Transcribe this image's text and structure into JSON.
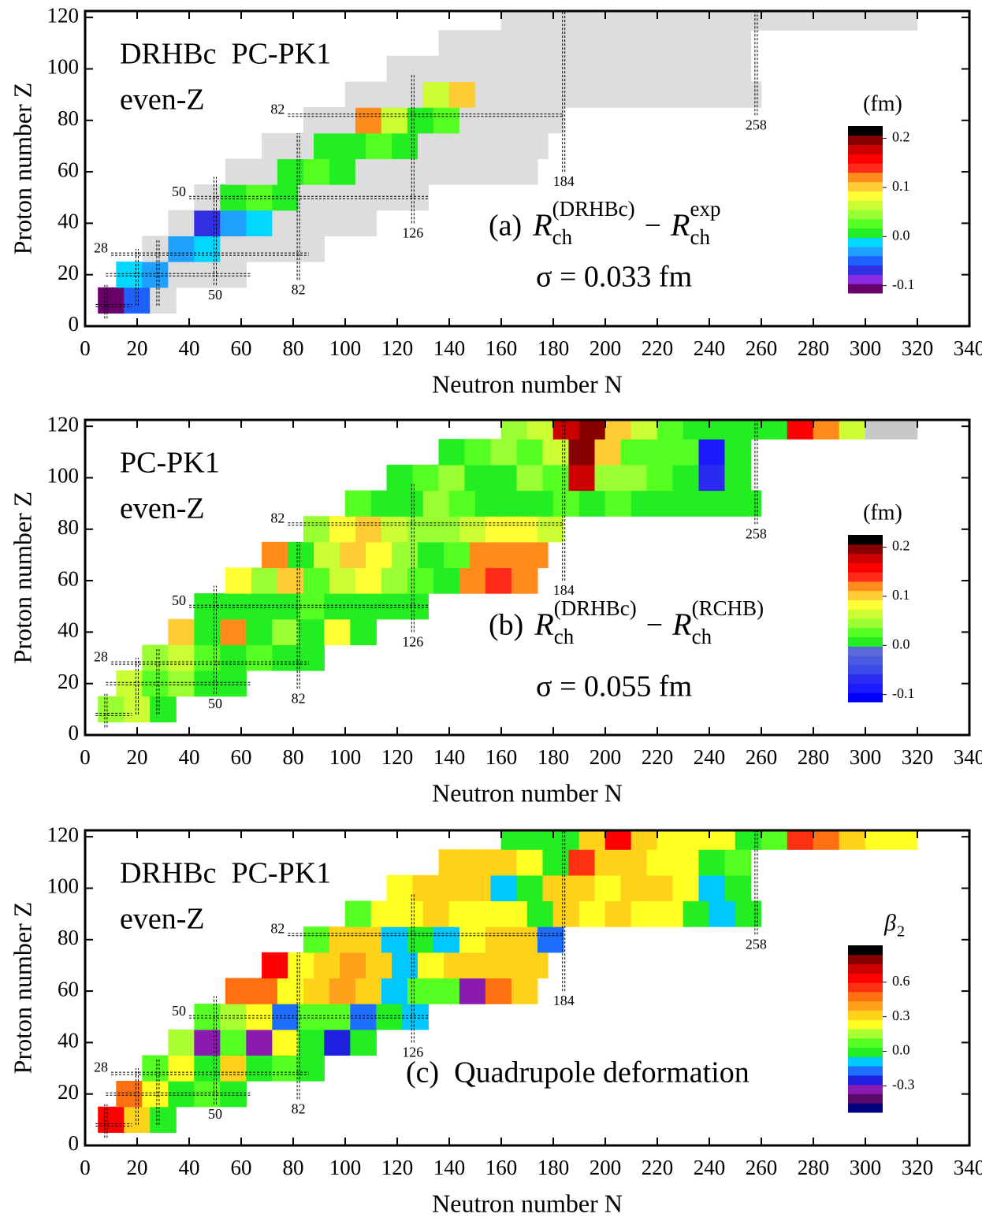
{
  "chart_data": [
    {
      "type": "heatmap",
      "title_lines": [
        "DRHBc  PC-PK1",
        "even-Z"
      ],
      "annotation": {
        "prefix": "(a)",
        "terms": [
          {
            "base": "R",
            "sub": "ch",
            "sup": "(DRHBc)"
          },
          {
            "base": "R",
            "sub": "ch",
            "sup": "exp"
          }
        ],
        "operator": "−"
      },
      "sigma": "σ = 0.033 fm",
      "x_label": "Neutron number N",
      "y_label": "Proton number Z",
      "xlim": [
        0,
        340
      ],
      "ylim": [
        0,
        122.5
      ],
      "xticks": [
        0,
        20,
        40,
        60,
        80,
        100,
        120,
        140,
        160,
        180,
        200,
        220,
        240,
        260,
        280,
        300,
        320,
        340
      ],
      "yticks": [
        0,
        20,
        40,
        60,
        80,
        100,
        120
      ],
      "missing_color": "#dddddd",
      "rows": [
        {
          "z": 10,
          "n0": 5,
          "values": [
            -0.1,
            -0.04,
            null
          ]
        },
        {
          "z": 20,
          "n0": 12,
          "values": [
            -0.02,
            -0.03,
            null,
            null,
            null
          ]
        },
        {
          "z": 30,
          "n0": 22,
          "values": [
            null,
            -0.03,
            -0.02,
            null,
            null,
            null,
            null
          ]
        },
        {
          "z": 40,
          "n0": 32,
          "values": [
            null,
            -0.06,
            -0.03,
            -0.02,
            null,
            null,
            null,
            null
          ]
        },
        {
          "z": 50,
          "n0": 42,
          "values": [
            null,
            0,
            0.02,
            0,
            null,
            null,
            null,
            null,
            null
          ]
        },
        {
          "z": 60,
          "n0": 54,
          "values": [
            null,
            null,
            0,
            0.02,
            0,
            null,
            null,
            null,
            null,
            null,
            null,
            null
          ]
        },
        {
          "z": 70,
          "n0": 68,
          "values": [
            null,
            null,
            0,
            0.01,
            0.02,
            0,
            null,
            null,
            null,
            null,
            null
          ]
        },
        {
          "z": 80,
          "n0": 84,
          "values": [
            null,
            null,
            0.12,
            0.06,
            0,
            0.03,
            null,
            null,
            null,
            null
          ]
        },
        {
          "z": 90,
          "n0": 100,
          "values": [
            null,
            null,
            null,
            0.06,
            0.1,
            null,
            null,
            null,
            null,
            null,
            null,
            null,
            null,
            null,
            null,
            null
          ]
        },
        {
          "z": 100,
          "n0": 116,
          "values": [
            null,
            null,
            null,
            null,
            null,
            null,
            null,
            null,
            null,
            null,
            null,
            null,
            null,
            null
          ]
        },
        {
          "z": 110,
          "n0": 136,
          "values": [
            null,
            null,
            null,
            null,
            null,
            null,
            null,
            null,
            null,
            null,
            null,
            null
          ]
        },
        {
          "z": 120,
          "n0": 160,
          "values": [
            null,
            null,
            null,
            null,
            null,
            null,
            null,
            null,
            null,
            null,
            null,
            null,
            null,
            null,
            null,
            null
          ]
        }
      ],
      "colorbar": {
        "title": "(fm)",
        "clim": [
          -0.115,
          0.225
        ],
        "ticks": [
          0.2,
          0.1,
          {
            "value": 0,
            "label": "0.0"
          },
          -0.1
        ],
        "colors": [
          "#6a006a",
          "#8a2be2",
          "#3030e0",
          "#1e60ff",
          "#1ea0ff",
          "#00d8ff",
          "#22ee22",
          "#55ff22",
          "#99ff33",
          "#ccff33",
          "#ffff33",
          "#ffcc33",
          "#ff8c1a",
          "#ff2a1a",
          "#ff0000",
          "#cc0000",
          "#880000",
          "#000000"
        ]
      }
    },
    {
      "type": "heatmap",
      "title_lines": [
        "PC-PK1",
        "even-Z"
      ],
      "annotation": {
        "prefix": "(b)",
        "terms": [
          {
            "base": "R",
            "sub": "ch",
            "sup": "(DRHBc)"
          },
          {
            "base": "R",
            "sub": "ch",
            "sup": "(RCHB)"
          }
        ],
        "operator": "−"
      },
      "sigma": "σ = 0.055 fm",
      "x_label": "Neutron number N",
      "y_label": "Proton number Z",
      "xlim": [
        0,
        340
      ],
      "ylim": [
        0,
        122.5
      ],
      "xticks": [
        0,
        20,
        40,
        60,
        80,
        100,
        120,
        140,
        160,
        180,
        200,
        220,
        240,
        260,
        280,
        300,
        320,
        340
      ],
      "yticks": [
        0,
        20,
        40,
        60,
        80,
        100,
        120
      ],
      "missing_color": "#c8c8c8",
      "rows": [
        {
          "z": 10,
          "n0": 5,
          "values": [
            0.04,
            0.06,
            0
          ]
        },
        {
          "z": 20,
          "n0": 12,
          "values": [
            0.06,
            0.03,
            0.05,
            0,
            0
          ]
        },
        {
          "z": 30,
          "n0": 22,
          "values": [
            0.04,
            0.06,
            0.02,
            0,
            0.03,
            0,
            0
          ]
        },
        {
          "z": 40,
          "n0": 32,
          "values": [
            0.1,
            0,
            0.12,
            0,
            0.04,
            0,
            0.08,
            0
          ]
        },
        {
          "z": 50,
          "n0": 42,
          "values": [
            0,
            0,
            0,
            0,
            0.02,
            0,
            0,
            0,
            0
          ]
        },
        {
          "z": 60,
          "n0": 54,
          "values": [
            0.08,
            0.04,
            0.1,
            0.02,
            0.06,
            0.09,
            0.04,
            0.02,
            0,
            0.12,
            0.14,
            0.12
          ]
        },
        {
          "z": 70,
          "n0": 68,
          "values": [
            0.12,
            0,
            0.06,
            0.1,
            0.09,
            0.04,
            0,
            0.02,
            0.12,
            0.13,
            0.12
          ]
        },
        {
          "z": 80,
          "n0": 84,
          "values": [
            0.04,
            0.08,
            0.1,
            0.06,
            0.04,
            0.04,
            0.06,
            0.09,
            0.08,
            0.06
          ]
        },
        {
          "z": 90,
          "n0": 100,
          "values": [
            0.02,
            0,
            0,
            0.04,
            0.02,
            0,
            0,
            0,
            0.03,
            0,
            0.02,
            0,
            0,
            0,
            0,
            0
          ]
        },
        {
          "z": 100,
          "n0": 116,
          "values": [
            0,
            0.02,
            0.04,
            0,
            0,
            0.04,
            0.02,
            0.18,
            0.04,
            0.04,
            0.02,
            0,
            -0.06,
            0
          ]
        },
        {
          "z": 110,
          "n0": 136,
          "values": [
            0,
            0.02,
            0.04,
            0.03,
            0.06,
            0.2,
            0.1,
            0.02,
            0.03,
            0.02,
            -0.08,
            0
          ]
        },
        {
          "z": 120,
          "n0": 160,
          "values": [
            0.04,
            0.06,
            0.18,
            0.2,
            0.1,
            0.06,
            0.02,
            0,
            0,
            0,
            0,
            0.16,
            0.12,
            0.06,
            null,
            null
          ]
        }
      ],
      "colorbar": {
        "title": "(fm)",
        "clim": [
          -0.115,
          0.225
        ],
        "ticks": [
          0.2,
          0.1,
          {
            "value": 0,
            "label": "0.0"
          },
          -0.1
        ],
        "colors": [
          "#0000ff",
          "#1a1aff",
          "#2a2af0",
          "#3a4ae8",
          "#4a5ae0",
          "#5a6ad8",
          "#22ee22",
          "#55ff22",
          "#99ff33",
          "#ccff33",
          "#ffff33",
          "#ffcc33",
          "#ff8c1a",
          "#ff2a1a",
          "#ff0000",
          "#cc0000",
          "#880000",
          "#000000"
        ]
      }
    },
    {
      "type": "heatmap",
      "title_lines": [
        "DRHBc  PC-PK1",
        "even-Z"
      ],
      "annotation": {
        "prefix": "(c)  Quadrupole deformation",
        "terms": [],
        "operator": ""
      },
      "x_label": "Neutron number N",
      "y_label": "Proton number Z",
      "xlim": [
        0,
        340
      ],
      "ylim": [
        0,
        122.5
      ],
      "xticks": [
        0,
        20,
        40,
        60,
        80,
        100,
        120,
        140,
        160,
        180,
        200,
        220,
        240,
        260,
        280,
        300,
        320,
        340
      ],
      "yticks": [
        0,
        20,
        40,
        60,
        80,
        100,
        120
      ],
      "missing_color": "#ffe89a",
      "rows": [
        {
          "z": 10,
          "n0": 5,
          "values": [
            0.6,
            0.3,
            0
          ]
        },
        {
          "z": 20,
          "n0": 12,
          "values": [
            0.45,
            0.2,
            0,
            0.1,
            0
          ]
        },
        {
          "z": 30,
          "n0": 22,
          "values": [
            0.1,
            0.2,
            0,
            0.3,
            0,
            0.05,
            0
          ]
        },
        {
          "z": 40,
          "n0": 32,
          "values": [
            0.15,
            -0.3,
            0.1,
            -0.3,
            0.2,
            0,
            -0.25,
            0
          ]
        },
        {
          "z": 50,
          "n0": 42,
          "values": [
            0.1,
            0.15,
            0.25,
            -0.2,
            0.1,
            0.05,
            -0.2,
            0,
            -0.1
          ]
        },
        {
          "z": 60,
          "n0": 54,
          "values": [
            0.5,
            0.45,
            0.2,
            0.35,
            0.4,
            0.3,
            -0.1,
            0.1,
            0.1,
            -0.3,
            0.5,
            0.3
          ]
        },
        {
          "z": 70,
          "n0": 68,
          "values": [
            0.6,
            0.2,
            0.35,
            0.4,
            0.3,
            -0.1,
            0.2,
            0.3,
            0.35,
            0.35,
            0.3
          ]
        },
        {
          "z": 80,
          "n0": 84,
          "values": [
            0.1,
            0.3,
            0.3,
            -0.1,
            0,
            -0.05,
            0.25,
            0.35,
            0.3,
            -0.2
          ]
        },
        {
          "z": 90,
          "n0": 100,
          "values": [
            0.1,
            0.2,
            0.25,
            0.3,
            0.25,
            0.2,
            0.25,
            0,
            0.3,
            0.25,
            0.35,
            0.25,
            0.2,
            0,
            -0.05,
            0
          ]
        },
        {
          "z": 100,
          "n0": 116,
          "values": [
            0.25,
            0.3,
            0.35,
            0.35,
            -0.1,
            0,
            0.3,
            0.3,
            0.25,
            0.35,
            0.3,
            0.2,
            -0.05,
            0
          ]
        },
        {
          "z": 110,
          "n0": 136,
          "values": [
            0.3,
            0.35,
            0.35,
            0.2,
            0,
            0.55,
            0.3,
            0.3,
            0.25,
            0.25,
            0,
            0.1
          ]
        },
        {
          "z": 120,
          "n0": 160,
          "values": [
            0,
            0,
            0,
            0.3,
            0.6,
            0.3,
            0.25,
            0.25,
            0.2,
            0,
            0.05,
            0.55,
            0.5,
            0.3,
            0.2,
            0.2
          ]
        }
      ],
      "colorbar": {
        "title": {
          "base": "β",
          "sub": "2"
        },
        "clim": [
          -0.53,
          0.92
        ],
        "ticks": [
          0.6,
          0.3,
          {
            "value": 0,
            "label": "0.0"
          },
          -0.3
        ],
        "colors": [
          "#000080",
          "#5a0a6a",
          "#8a1ab0",
          "#2020e0",
          "#1e6fff",
          "#00c8ff",
          "#22ee22",
          "#55ff22",
          "#aaff33",
          "#ffff22",
          "#ffd21a",
          "#ffa01a",
          "#ff7010",
          "#ff3010",
          "#ff0000",
          "#cc0000",
          "#880000",
          "#000000"
        ]
      }
    }
  ],
  "magic_numbers": {
    "neutron": [
      8,
      20,
      28,
      50,
      82,
      126,
      184,
      258
    ],
    "proton": [
      8,
      20,
      28,
      50,
      82
    ]
  }
}
